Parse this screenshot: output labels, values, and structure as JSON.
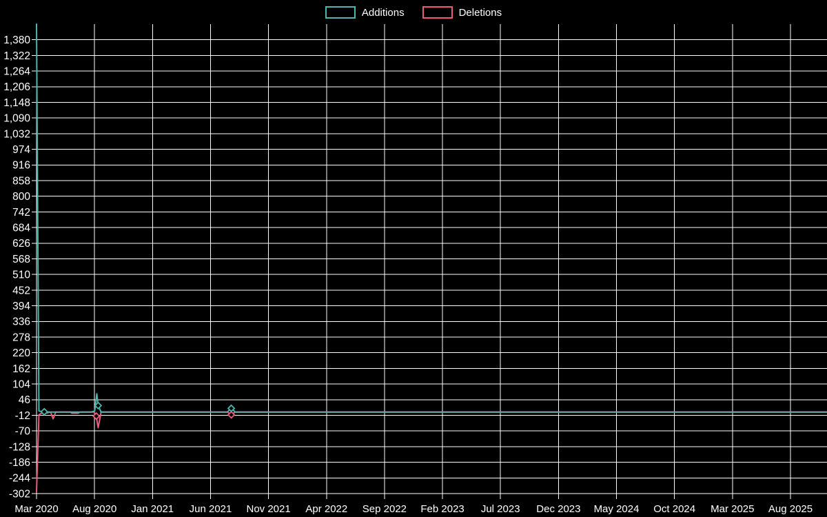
{
  "legend": {
    "items": [
      {
        "label": "Additions"
      },
      {
        "label": "Deletions"
      }
    ]
  },
  "chart_data": {
    "type": "line",
    "title": "",
    "xlabel": "",
    "ylabel": "",
    "background_color": "#000000",
    "grid_color": "#ffffff",
    "text_color": "#ffffff",
    "grid": true,
    "legend_position": "top-center",
    "ylim": [
      -302,
      1438
    ],
    "y_tick_step": 58,
    "y_label_max": 1380,
    "y_tick_labels": [
      "1,380",
      "1,322",
      "1,264",
      "1,206",
      "1,148",
      "1,090",
      "1,032",
      "974",
      "916",
      "858",
      "800",
      "742",
      "684",
      "626",
      "568",
      "510",
      "452",
      "394",
      "336",
      "278",
      "220",
      "162",
      "104",
      "46",
      "-12",
      "-70",
      "-128",
      "-186",
      "-244",
      "-302"
    ],
    "x_tick_labels": [
      "Mar 2020",
      "Aug 2020",
      "Jan 2021",
      "Jun 2021",
      "Nov 2021",
      "Apr 2022",
      "Sep 2022",
      "Feb 2023",
      "Jul 2023",
      "Dec 2023",
      "May 2024",
      "Oct 2024",
      "Mar 2025",
      "Aug 2025"
    ],
    "tick_interval_months": 5,
    "weeks_per_month": 4.348,
    "weeks_span": 296.3,
    "series": [
      {
        "name": "Additions",
        "color": "#4bb7ad",
        "marker_shape": "diamond",
        "points": [
          [
            0,
            1438
          ],
          [
            0.9,
            4
          ],
          [
            2,
            2
          ],
          [
            3.5,
            1
          ],
          [
            5,
            0
          ],
          [
            20.5,
            0
          ],
          [
            21.8,
            4
          ],
          [
            22.6,
            68
          ],
          [
            23.1,
            24
          ],
          [
            24.2,
            0
          ],
          [
            71.5,
            0
          ],
          [
            73,
            14
          ],
          [
            74.5,
            0
          ],
          [
            296.3,
            0
          ]
        ],
        "markers": [
          [
            2.9,
            1
          ],
          [
            23.1,
            24
          ],
          [
            73,
            14
          ]
        ]
      },
      {
        "name": "Deletions",
        "color": "#ee5c7d",
        "marker_shape": "diamond",
        "points": [
          [
            0,
            -295
          ],
          [
            0.9,
            -10
          ],
          [
            2,
            -3
          ],
          [
            4,
            -3
          ],
          [
            5,
            0
          ],
          [
            5.4,
            -2
          ],
          [
            6.2,
            -25
          ],
          [
            7.2,
            0
          ],
          [
            12.8,
            0
          ],
          [
            13.2,
            -4
          ],
          [
            15.6,
            -4
          ],
          [
            16.2,
            0
          ],
          [
            21.6,
            0
          ],
          [
            22.4,
            -15
          ],
          [
            23.1,
            -58
          ],
          [
            24.2,
            0
          ],
          [
            71.6,
            0
          ],
          [
            73,
            -10
          ],
          [
            74.4,
            0
          ],
          [
            296.3,
            0
          ]
        ],
        "markers": [
          [
            22.4,
            -15
          ],
          [
            73,
            -10
          ]
        ]
      }
    ]
  }
}
